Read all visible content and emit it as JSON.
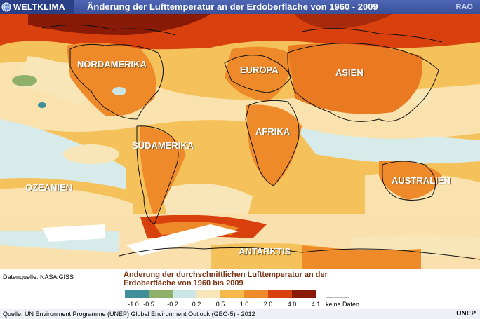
{
  "header": {
    "brand": "WELTKLIMA",
    "title": "Änderung der Lufttemperatur an der Erdoberfläche von 1960 - 2009",
    "agency": "RAO"
  },
  "map": {
    "labels": {
      "north_america": "NORDAMERIKA",
      "europe": "EUROPA",
      "asia": "ASIEN",
      "africa": "AFRIKA",
      "south_america": "SÜDAMERIKA",
      "oceania": "OZEANIEN",
      "australia": "AUSTRALIEN",
      "antarctica": "ANTARKTIS"
    }
  },
  "footer": {
    "data_source": "Datenquelle: NASA GISS",
    "legend_title": "Anderung der durchschnittlichen Lufttemperatur an der Erdoberfläche von 1960 bis 2009",
    "legend_ticks": [
      "-1.0",
      "-0.5",
      "-0.2",
      "0.2",
      "0.5",
      "1.0",
      "2.0",
      "4.0",
      "4.1"
    ],
    "legend_colors": [
      "#3f8f9a",
      "#8fb06a",
      "#c9e6e4",
      "#f9e6b8",
      "#f5b84a",
      "#ee8a2a",
      "#d8400e",
      "#8a1a08"
    ],
    "no_data_label": "keine Daten",
    "source": "Quelle: UN Environment Programme (UNEP)  Global Environment Outlook (GEO-5) - 2012",
    "publisher": "UNEP"
  }
}
